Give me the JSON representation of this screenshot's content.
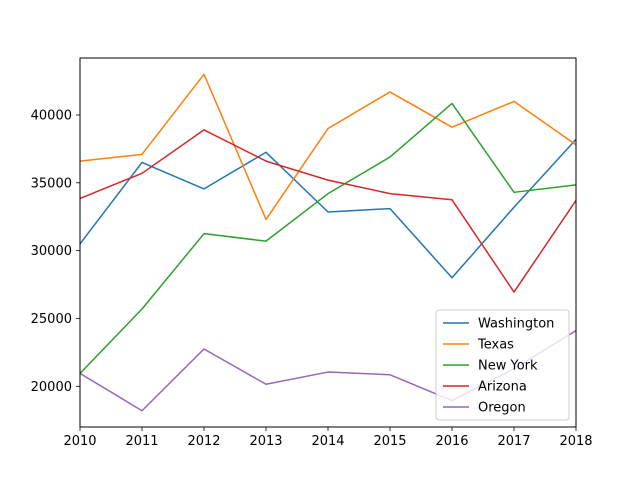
{
  "chart_data": {
    "type": "line",
    "title": "",
    "xlabel": "",
    "ylabel": "",
    "x": [
      2010,
      2011,
      2012,
      2013,
      2014,
      2015,
      2016,
      2017,
      2018
    ],
    "xlim": [
      2010,
      2018
    ],
    "ylim": [
      17000,
      44200
    ],
    "xticks": [
      2010,
      2011,
      2012,
      2013,
      2014,
      2015,
      2016,
      2017,
      2018
    ],
    "xtick_labels": [
      "2010",
      "2011",
      "2012",
      "2013",
      "2014",
      "2015",
      "2016",
      "2017",
      "2018"
    ],
    "yticks": [
      20000,
      25000,
      30000,
      35000,
      40000
    ],
    "ytick_labels": [
      "20000",
      "25000",
      "30000",
      "35000",
      "40000"
    ],
    "grid": false,
    "legend_position": "lower-right",
    "series": [
      {
        "name": "Washington",
        "color": "#1f77b4",
        "values": [
          30500,
          36500,
          34550,
          37250,
          32850,
          33100,
          28000,
          33200,
          38200
        ]
      },
      {
        "name": "Texas",
        "color": "#ff7f0e",
        "values": [
          36600,
          37100,
          43000,
          32300,
          39000,
          41700,
          39100,
          41000,
          37800
        ]
      },
      {
        "name": "New York",
        "color": "#2ca02c",
        "values": [
          20950,
          25700,
          31250,
          30700,
          34200,
          36900,
          40850,
          34300,
          34850
        ]
      },
      {
        "name": "Arizona",
        "color": "#d62728",
        "values": [
          33850,
          35700,
          38900,
          36600,
          35200,
          34200,
          33750,
          26950,
          33700
        ]
      },
      {
        "name": "Oregon",
        "color": "#9467bd",
        "values": [
          20950,
          18200,
          22750,
          20150,
          21050,
          20850,
          18950,
          21300,
          24100
        ]
      }
    ]
  }
}
